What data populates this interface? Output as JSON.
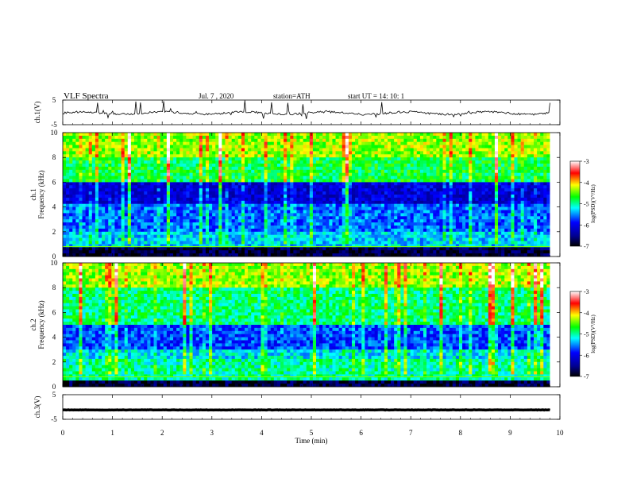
{
  "header": {
    "title": "VLF  Spectra",
    "date": "Jul.  7  , 2020",
    "station": "station=ATH",
    "start": "start  UT  =   14: 10: 1"
  },
  "chart_data": [
    {
      "type": "line",
      "panel": "ch1-waveform",
      "ylabel": "ch.1(V)",
      "ylim": [
        -5,
        5
      ],
      "yticks": [
        "5",
        "-5"
      ],
      "baseline": -0.3,
      "note": "noisy waveform centered near -0.3 V with frequent spikes"
    },
    {
      "type": "heatmap",
      "panel": "ch1-spectrogram",
      "ylabel": "ch.1\nFrequency  (kHz)",
      "ylim": [
        0,
        10
      ],
      "yticks": [
        "0",
        "2",
        "4",
        "6",
        "8",
        "10"
      ],
      "colorbar": {
        "label": "log(PSD)(V²/Hz)",
        "ticks": [
          "-3",
          "-4",
          "-5",
          "-6",
          "-7"
        ],
        "range": [
          -7,
          -3
        ]
      }
    },
    {
      "type": "heatmap",
      "panel": "ch2-spectrogram",
      "ylabel": "ch.2\nFrequency  (kHz)",
      "ylim": [
        0,
        10
      ],
      "yticks": [
        "0",
        "2",
        "4",
        "6",
        "8",
        "10"
      ],
      "colorbar": {
        "label": "log(PSD)(V²/Hz)",
        "ticks": [
          "-3",
          "-4",
          "-5",
          "-6",
          "-7"
        ],
        "range": [
          -7,
          -3
        ]
      }
    },
    {
      "type": "line",
      "panel": "ch3-waveform",
      "ylabel": "ch.3(V)",
      "ylim": [
        -5,
        5
      ],
      "yticks": [
        "5",
        "-5"
      ],
      "baseline": -1.2,
      "note": "flat thick line near -1.2 V"
    }
  ],
  "xaxis": {
    "label": "Time  (min)",
    "ticks": [
      "0",
      "1",
      "2",
      "3",
      "4",
      "5",
      "6",
      "7",
      "8",
      "9",
      "10"
    ],
    "xlim": [
      0,
      10
    ],
    "data_end": 9.8
  },
  "colors": {
    "colormap": [
      "#000000",
      "#000080",
      "#0000ff",
      "#00ffff",
      "#00ff00",
      "#ffff00",
      "#ff0000",
      "#ffffff"
    ]
  }
}
